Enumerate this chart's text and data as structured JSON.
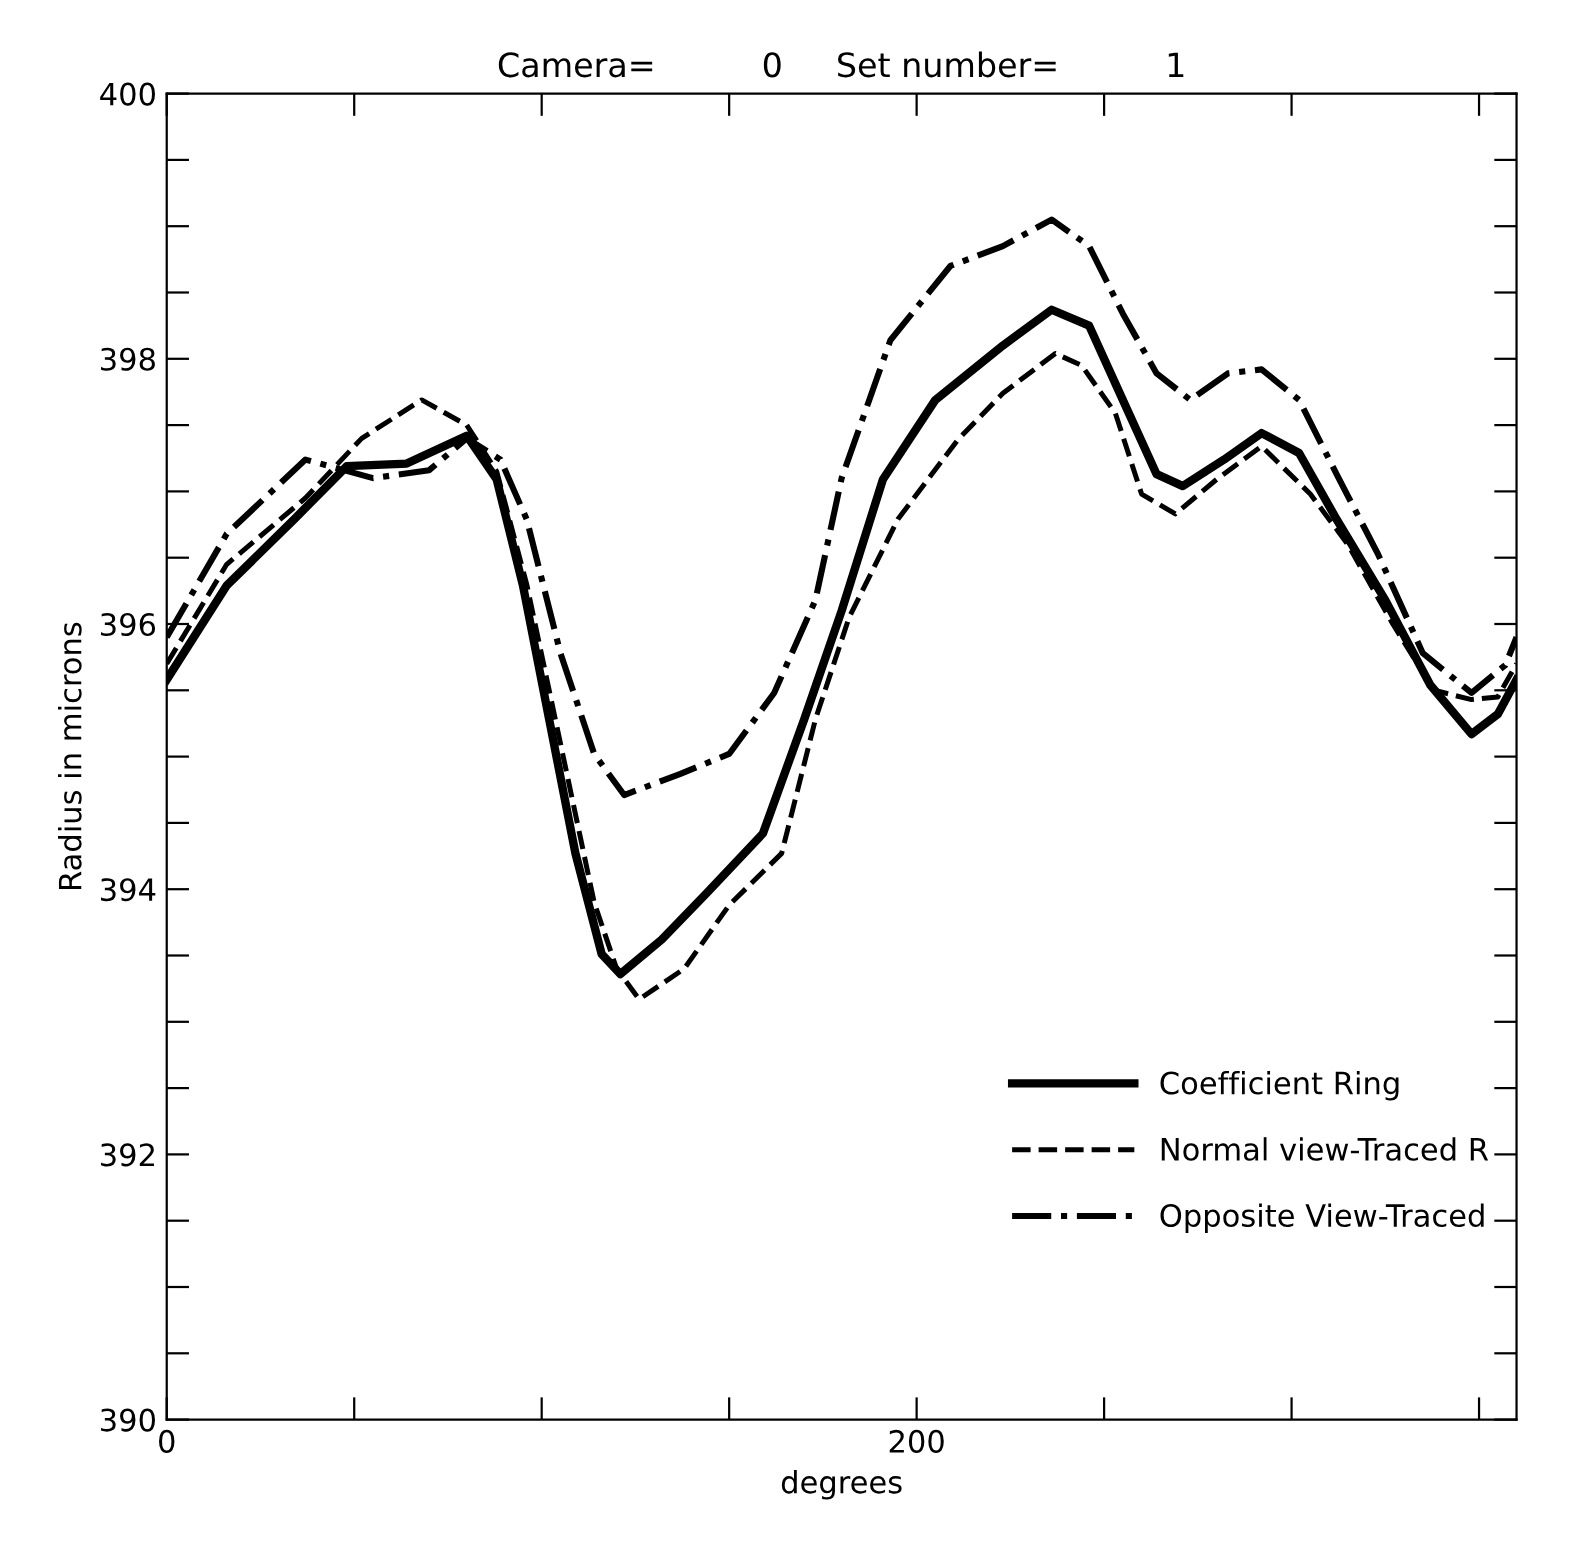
{
  "chart_data": {
    "type": "line",
    "title": "Camera=          0     Set number=          1",
    "xlabel": "degrees",
    "ylabel": "Radius in microns",
    "xlim": [
      0,
      360
    ],
    "ylim": [
      390,
      400
    ],
    "xticks": [
      0,
      {
        "value": 50,
        "label": null
      },
      {
        "value": 100,
        "label": null
      },
      {
        "value": 150,
        "label": null
      },
      200,
      {
        "value": 250,
        "label": null
      },
      {
        "value": 300,
        "label": null
      },
      {
        "value": 350,
        "label": null
      }
    ],
    "yticks": [
      390,
      {
        "value": 390.5,
        "label": null
      },
      {
        "value": 391,
        "label": null
      },
      {
        "value": 391.5,
        "label": null
      },
      392,
      {
        "value": 392.5,
        "label": null
      },
      {
        "value": 393,
        "label": null
      },
      {
        "value": 393.5,
        "label": null
      },
      394,
      {
        "value": 394.5,
        "label": null
      },
      {
        "value": 395,
        "label": null
      },
      {
        "value": 395.5,
        "label": null
      },
      396,
      {
        "value": 396.5,
        "label": null
      },
      {
        "value": 397,
        "label": null
      },
      {
        "value": 397.5,
        "label": null
      },
      398,
      {
        "value": 398.5,
        "label": null
      },
      {
        "value": 399,
        "label": null
      },
      {
        "value": 399.5,
        "label": null
      },
      400
    ],
    "grid": false,
    "legend": "bottom right",
    "series": [
      {
        "name": "Coefficient Ring",
        "color": "#000000",
        "line_style": "solid",
        "x": [
          0,
          16,
          34,
          48,
          64,
          80,
          88,
          95,
          102,
          109,
          116,
          121,
          132,
          144,
          159,
          170,
          180,
          191,
          205,
          223,
          236,
          246,
          255,
          264,
          271,
          282,
          292,
          302,
          312,
          325,
          337,
          348,
          355,
          360
        ],
        "values": [
          395.58,
          396.29,
          396.79,
          397.19,
          397.21,
          397.42,
          397.09,
          396.29,
          395.28,
          394.27,
          393.51,
          393.36,
          393.62,
          393.97,
          394.42,
          395.28,
          396.1,
          397.09,
          397.69,
          398.1,
          398.37,
          398.25,
          397.69,
          397.13,
          397.04,
          397.24,
          397.44,
          397.29,
          396.79,
          396.18,
          395.54,
          395.17,
          395.32,
          395.58
        ]
      },
      {
        "name": "Normal view-Traced R",
        "color": "#000000",
        "line_style": "dashed",
        "x": [
          0,
          16,
          37,
          52,
          68,
          80,
          88,
          96,
          105,
          114,
          120,
          126,
          138,
          150,
          164,
          173,
          182,
          195,
          211,
          223,
          237,
          244,
          253,
          260,
          269,
          280,
          292,
          305,
          315,
          327,
          338,
          348,
          355,
          360
        ],
        "values": [
          395.7,
          396.45,
          396.95,
          397.4,
          397.69,
          397.5,
          397.15,
          396.3,
          395.1,
          393.9,
          393.4,
          393.17,
          393.4,
          393.88,
          394.27,
          395.28,
          396.05,
          396.79,
          397.39,
          397.74,
          398.04,
          397.95,
          397.59,
          396.98,
          396.83,
          397.09,
          397.34,
          396.98,
          396.6,
          396.0,
          395.5,
          395.43,
          395.45,
          395.7
        ]
      },
      {
        "name": "Opposite View-Traced",
        "color": "#000000",
        "line_style": "dashdot",
        "x": [
          0,
          16,
          37,
          55,
          70,
          80,
          89,
          96,
          105,
          114,
          122,
          137,
          150,
          162,
          173,
          180,
          193,
          209,
          223,
          236,
          246,
          255,
          264,
          273,
          283,
          292,
          302,
          312,
          323,
          335,
          348,
          357,
          360
        ],
        "values": [
          395.9,
          396.68,
          397.24,
          397.1,
          397.16,
          397.4,
          397.24,
          396.79,
          395.78,
          395.02,
          394.71,
          394.87,
          395.02,
          395.48,
          396.18,
          397.1,
          398.14,
          398.7,
          398.85,
          399.05,
          398.85,
          398.34,
          397.89,
          397.69,
          397.89,
          397.92,
          397.69,
          397.13,
          396.53,
          395.78,
          395.48,
          395.69,
          395.9
        ]
      }
    ]
  }
}
